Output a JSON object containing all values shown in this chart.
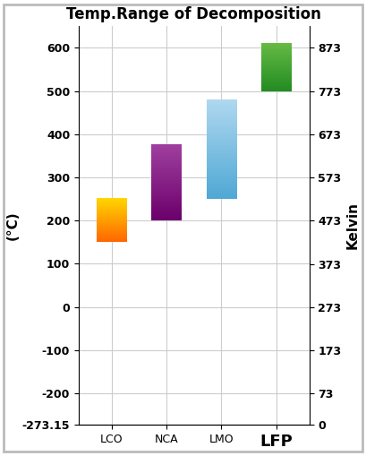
{
  "title": "Temp.Range of Decomposition",
  "ylabel_left": "(°C)",
  "ylabel_right": "Kelvin",
  "categories": [
    "LCO",
    "NCA",
    "LMO",
    "LFP"
  ],
  "bar_bottoms": [
    150,
    200,
    250,
    500
  ],
  "bar_tops": [
    250,
    375,
    480,
    610
  ],
  "grad_colors_bottom": [
    "#FF6600",
    "#6B006B",
    "#4FA8D5",
    "#228B22"
  ],
  "grad_colors_top": [
    "#FFD700",
    "#A040A0",
    "#B0D8F0",
    "#66BB44"
  ],
  "ylim_celsius": [
    -273.15,
    650
  ],
  "yticks_celsius": [
    -273.15,
    -200,
    -100,
    0,
    100,
    200,
    300,
    400,
    500,
    600
  ],
  "ytick_labels_celsius": [
    "-273.15",
    "-200",
    "-100",
    "0",
    "100",
    "200",
    "300",
    "400",
    "500",
    "600"
  ],
  "ytick_labels_kelvin": [
    "0",
    "73",
    "173",
    "273",
    "373",
    "473",
    "573",
    "673",
    "773",
    "873"
  ],
  "background_color": "#ffffff",
  "grid_color": "#cccccc",
  "title_fontsize": 12,
  "axis_label_fontsize": 11,
  "tick_fontsize": 9,
  "bar_width": 0.55,
  "lfp_label_fontsize": 13
}
